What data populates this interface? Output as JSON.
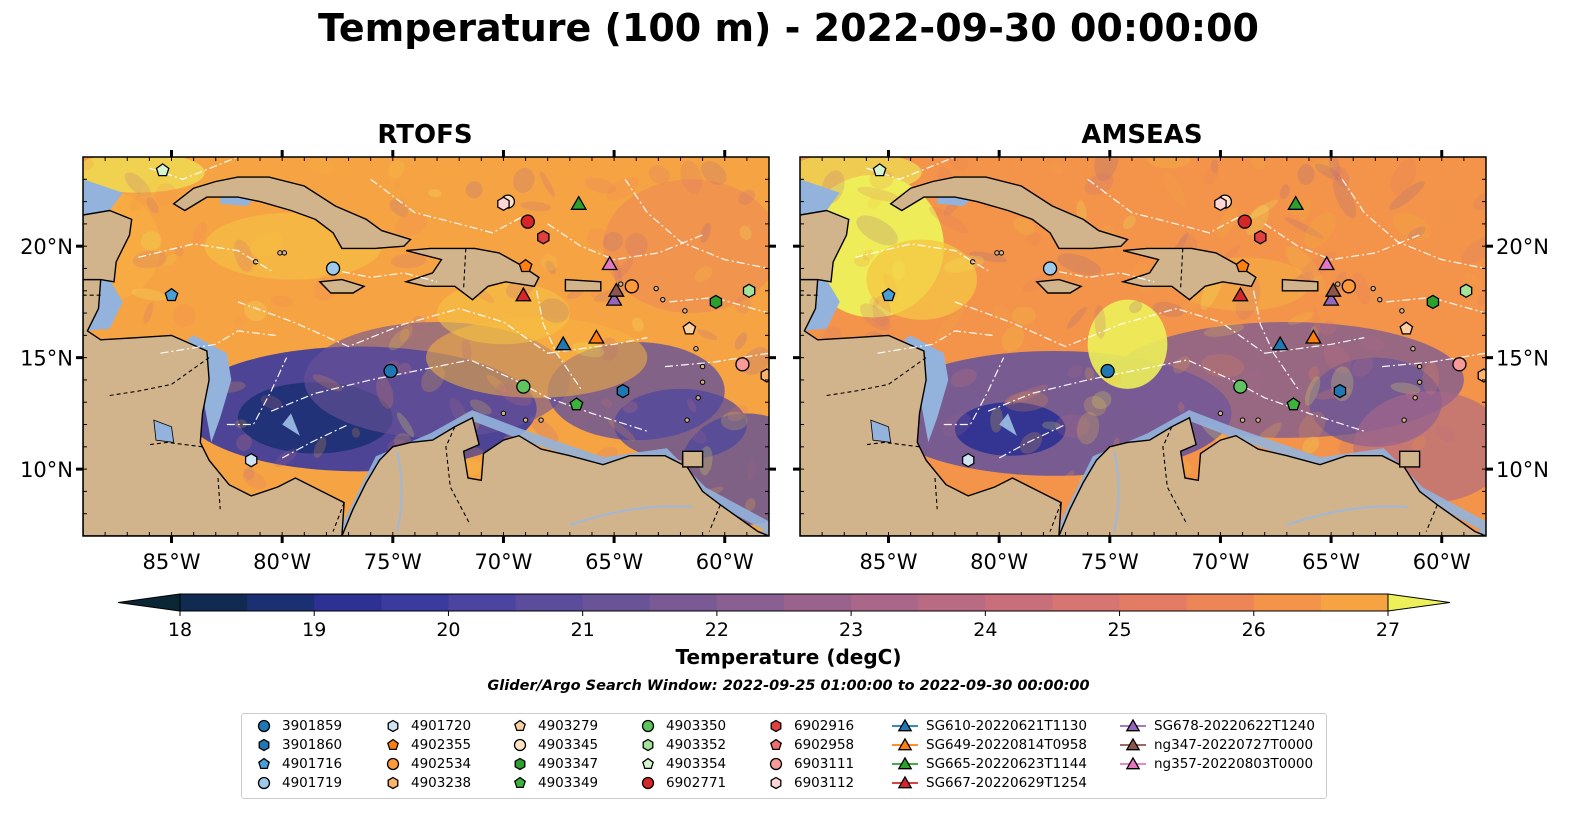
{
  "title": "Temperature (100 m) - 2022-09-30 00:00:00",
  "panels": [
    {
      "name": "RTOFS",
      "theme": "rtofs"
    },
    {
      "name": "AMSEAS",
      "theme": "amseas"
    }
  ],
  "map": {
    "lon_range": [
      -89,
      -58
    ],
    "lat_range": [
      7,
      24
    ],
    "lat_ticks": [
      {
        "value": 20,
        "label": "20°N"
      },
      {
        "value": 15,
        "label": "15°N"
      },
      {
        "value": 10,
        "label": "10°N"
      }
    ],
    "lon_ticks": [
      {
        "value": -85,
        "label": "85°W"
      },
      {
        "value": -80,
        "label": "80°W"
      },
      {
        "value": -75,
        "label": "75°W"
      },
      {
        "value": -70,
        "label": "70°W"
      },
      {
        "value": -65,
        "label": "65°W"
      },
      {
        "value": -60,
        "label": "60°W"
      }
    ],
    "colors": {
      "land": "#d2b48c",
      "shallow_ocean": "#93b3dc",
      "coastline": "#000000",
      "eez": "#ffffff"
    }
  },
  "colorbar": {
    "label": "Temperature (degC)",
    "min": 18,
    "max": 27,
    "step": 0.5,
    "ticks": [
      {
        "value": 18,
        "label": "18"
      },
      {
        "value": 19,
        "label": "19"
      },
      {
        "value": 20,
        "label": "20"
      },
      {
        "value": 21,
        "label": "21"
      },
      {
        "value": 22,
        "label": "22"
      },
      {
        "value": 23,
        "label": "23"
      },
      {
        "value": 24,
        "label": "24"
      },
      {
        "value": 25,
        "label": "25"
      },
      {
        "value": 26,
        "label": "26"
      },
      {
        "value": 27,
        "label": "27"
      }
    ],
    "colormap": [
      "#0b2735",
      "#102a52",
      "#1b2f73",
      "#2c3193",
      "#3b3a9e",
      "#4b44a0",
      "#5b4c9c",
      "#6a5498",
      "#7a5a95",
      "#8a5f92",
      "#9a638e",
      "#aa678a",
      "#ba6b84",
      "#c96f7c",
      "#d67572",
      "#e37c64",
      "#ec8657",
      "#f3944a",
      "#f6a344",
      "#f7b33f",
      "#f5c744",
      "#edf059"
    ]
  },
  "search_window": "Glider/Argo Search Window: 2022-09-25 01:00:00 to 2022-09-30 00:00:00",
  "legend": {
    "columns": [
      [
        {
          "label": "3901859",
          "marker": "circle",
          "color": "#1f77b4"
        },
        {
          "label": "3901860",
          "marker": "hexagon",
          "color": "#1f77b4"
        },
        {
          "label": "4901716",
          "marker": "pentagon",
          "color": "#4a9ed6"
        },
        {
          "label": "4901719",
          "marker": "circle",
          "color": "#9ec9ea"
        }
      ],
      [
        {
          "label": "4901720",
          "marker": "hexagon",
          "color": "#cfe3f3"
        },
        {
          "label": "4902355",
          "marker": "pentagon",
          "color": "#ff7f0e"
        },
        {
          "label": "4902534",
          "marker": "circle",
          "color": "#ff9a3c"
        },
        {
          "label": "4903238",
          "marker": "hexagon",
          "color": "#ffb26b"
        }
      ],
      [
        {
          "label": "4903279",
          "marker": "pentagon",
          "color": "#ffd0a0"
        },
        {
          "label": "4903345",
          "marker": "circle",
          "color": "#ffe2c4"
        },
        {
          "label": "4903347",
          "marker": "hexagon",
          "color": "#2ca02c"
        },
        {
          "label": "4903349",
          "marker": "pentagon",
          "color": "#3cb43c"
        }
      ],
      [
        {
          "label": "4903350",
          "marker": "circle",
          "color": "#5fc45f"
        },
        {
          "label": "4903352",
          "marker": "hexagon",
          "color": "#a4e39a"
        },
        {
          "label": "4903354",
          "marker": "pentagon",
          "color": "#d6f5cf"
        },
        {
          "label": "6902771",
          "marker": "circle",
          "color": "#d62728"
        }
      ],
      [
        {
          "label": "6902916",
          "marker": "hexagon",
          "color": "#e0403f"
        },
        {
          "label": "6902958",
          "marker": "pentagon",
          "color": "#ee6e6e"
        },
        {
          "label": "6903111",
          "marker": "circle",
          "color": "#f79a9a"
        },
        {
          "label": "6903112",
          "marker": "hexagon",
          "color": "#ffd6d6"
        }
      ],
      [
        {
          "label": "SG610-20220621T1130",
          "marker": "triangle",
          "color": "#1f77b4"
        },
        {
          "label": "SG649-20220814T0958",
          "marker": "triangle",
          "color": "#ff7f0e"
        },
        {
          "label": "SG665-20220623T1144",
          "marker": "triangle",
          "color": "#2ca02c"
        },
        {
          "label": "SG667-20220629T1254",
          "marker": "triangle",
          "color": "#d62728"
        }
      ],
      [
        {
          "label": "SG678-20220622T1240",
          "marker": "triangle",
          "color": "#9467bd"
        },
        {
          "label": "ng347-20220727T0000",
          "marker": "triangle",
          "color": "#8c564b"
        },
        {
          "label": "ng357-20220803T0000",
          "marker": "triangle",
          "color": "#e377c2"
        }
      ]
    ]
  },
  "observations": [
    {
      "label": "3901859",
      "lon": -75.1,
      "lat": 14.4
    },
    {
      "label": "3901860",
      "lon": -64.6,
      "lat": 13.5
    },
    {
      "label": "4901716",
      "lon": -85.0,
      "lat": 17.8
    },
    {
      "label": "4901719",
      "lon": -77.7,
      "lat": 19.0
    },
    {
      "label": "4901720",
      "lon": -81.4,
      "lat": 10.4
    },
    {
      "label": "4902355",
      "lon": -69.0,
      "lat": 19.1
    },
    {
      "label": "4902534",
      "lon": -64.2,
      "lat": 18.2
    },
    {
      "label": "4903238",
      "lon": -58.1,
      "lat": 14.2
    },
    {
      "label": "4903279",
      "lon": -61.6,
      "lat": 16.3
    },
    {
      "label": "4903345",
      "lon": -69.8,
      "lat": 22.0
    },
    {
      "label": "4903347",
      "lon": -60.4,
      "lat": 17.5
    },
    {
      "label": "4903349",
      "lon": -66.7,
      "lat": 12.9
    },
    {
      "label": "4903350",
      "lon": -69.1,
      "lat": 13.7
    },
    {
      "label": "4903352",
      "lon": -58.9,
      "lat": 18.0
    },
    {
      "label": "4903354",
      "lon": -85.4,
      "lat": 23.4
    },
    {
      "label": "6902771",
      "lon": -68.9,
      "lat": 21.1
    },
    {
      "label": "6902916",
      "lon": -68.2,
      "lat": 20.4
    },
    {
      "label": "6903111",
      "lon": -59.2,
      "lat": 14.7
    },
    {
      "label": "6903112",
      "lon": -70.0,
      "lat": 21.9
    },
    {
      "label": "SG610-20220621T1130",
      "lon": -67.3,
      "lat": 15.6
    },
    {
      "label": "SG649-20220814T0958",
      "lon": -65.8,
      "lat": 15.9
    },
    {
      "label": "SG665-20220623T1144",
      "lon": -66.6,
      "lat": 21.9
    },
    {
      "label": "SG667-20220629T1254",
      "lon": -69.1,
      "lat": 17.8
    },
    {
      "label": "SG678-20220622T1240",
      "lon": -65.0,
      "lat": 17.6
    },
    {
      "label": "ng347-20220727T0000",
      "lon": -64.9,
      "lat": 18.0
    },
    {
      "label": "ng357-20220803T0000",
      "lon": -65.2,
      "lat": 19.2
    }
  ]
}
